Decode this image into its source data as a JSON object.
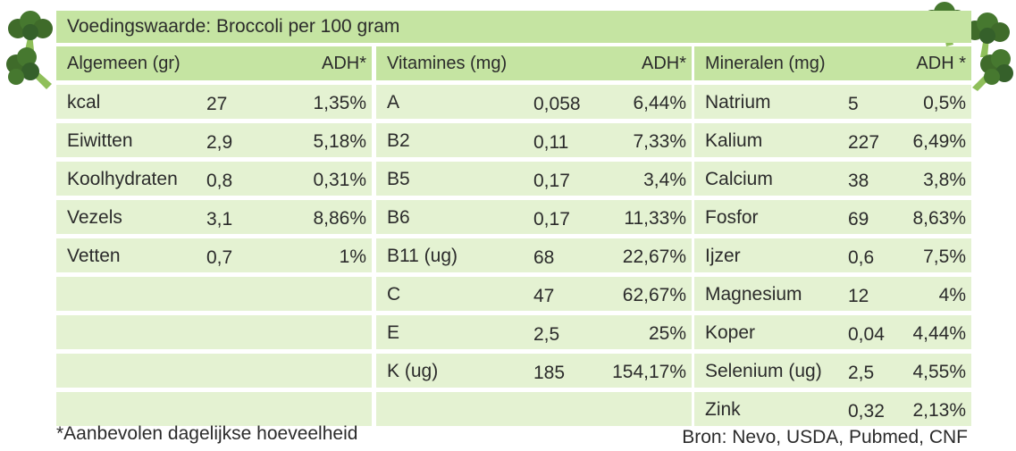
{
  "title": "Voedingswaarde: Broccoli per 100 gram",
  "colors": {
    "header": "#c5e4a2",
    "row": "#e4f2d2",
    "broccoli": "#3f6b2a",
    "stem": "#8fbf5a"
  },
  "icons": [
    "broccoli-icon"
  ],
  "columns": [
    {
      "header": "Algemeen (gr)",
      "adh": "ADH*",
      "rows": [
        {
          "name": "kcal",
          "value": "27",
          "pct": "1,35%"
        },
        {
          "name": "Eiwitten",
          "value": "2,9",
          "pct": "5,18%"
        },
        {
          "name": "Koolhydraten",
          "value": "0,8",
          "pct": "0,31%"
        },
        {
          "name": "Vezels",
          "value": "3,1",
          "pct": "8,86%"
        },
        {
          "name": "Vetten",
          "value": "0,7",
          "pct": "1%"
        },
        {
          "name": "",
          "value": "",
          "pct": ""
        },
        {
          "name": "",
          "value": "",
          "pct": ""
        },
        {
          "name": "",
          "value": "",
          "pct": ""
        },
        {
          "name": "",
          "value": "",
          "pct": ""
        }
      ]
    },
    {
      "header": "Vitamines (mg)",
      "adh": "ADH*",
      "rows": [
        {
          "name": "A",
          "value": "0,058",
          "pct": "6,44%"
        },
        {
          "name": "B2",
          "value": "0,11",
          "pct": "7,33%"
        },
        {
          "name": "B5",
          "value": "0,17",
          "pct": "3,4%"
        },
        {
          "name": "B6",
          "value": "0,17",
          "pct": "11,33%"
        },
        {
          "name": "B11 (ug)",
          "value": "68",
          "pct": "22,67%"
        },
        {
          "name": "C",
          "value": "47",
          "pct": "62,67%"
        },
        {
          "name": "E",
          "value": "2,5",
          "pct": "25%"
        },
        {
          "name": "K (ug)",
          "value": "185",
          "pct": "154,17%"
        },
        {
          "name": "",
          "value": "",
          "pct": ""
        }
      ]
    },
    {
      "header": "Mineralen (mg)",
      "adh": "ADH *",
      "rows": [
        {
          "name": "Natrium",
          "value": "5",
          "pct": "0,5%"
        },
        {
          "name": "Kalium",
          "value": "227",
          "pct": "6,49%"
        },
        {
          "name": "Calcium",
          "value": "38",
          "pct": "3,8%"
        },
        {
          "name": "Fosfor",
          "value": "69",
          "pct": "8,63%"
        },
        {
          "name": "Ijzer",
          "value": "0,6",
          "pct": "7,5%"
        },
        {
          "name": "Magnesium",
          "value": "12",
          "pct": "4%"
        },
        {
          "name": "Koper",
          "value": "0,04",
          "pct": "4,44%"
        },
        {
          "name": "Selenium (ug)",
          "value": "2,5",
          "pct": "4,55%"
        },
        {
          "name": "Zink",
          "value": "0,32",
          "pct": "2,13%"
        }
      ]
    }
  ],
  "footnote": "*Aanbevolen dagelijkse hoeveelheid",
  "source": "Bron:  Nevo, USDA, Pubmed, CNF"
}
